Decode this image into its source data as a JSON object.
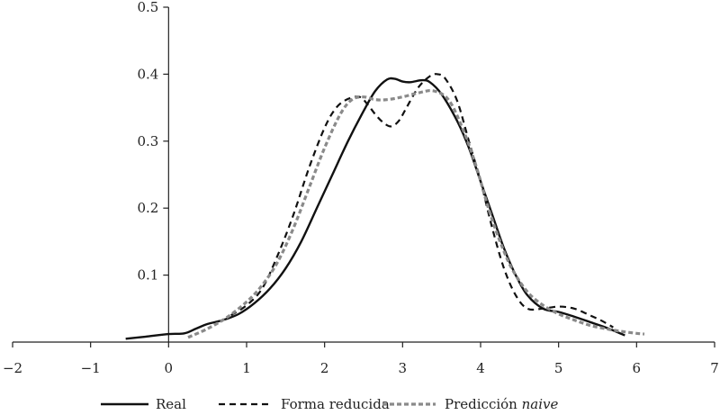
{
  "chart_data": {
    "type": "line",
    "title": "",
    "xlabel": "",
    "ylabel": "",
    "xlim": [
      -2,
      7
    ],
    "ylim": [
      0,
      0.5
    ],
    "x_ticks": [
      -2,
      -1,
      0,
      1,
      2,
      3,
      4,
      5,
      6,
      7
    ],
    "x_tick_labels": [
      "−2",
      "−1",
      "0",
      "1",
      "2",
      "3",
      "4",
      "5",
      "6",
      "7"
    ],
    "y_ticks": [
      0.1,
      0.2,
      0.3,
      0.4,
      0.5
    ],
    "y_tick_labels": [
      "0.1",
      "0.2",
      "0.3",
      "0.4",
      "0.5"
    ],
    "grid": false,
    "legend_position": "bottom",
    "series": [
      {
        "name": "Real",
        "style": "solid",
        "color": "#111111",
        "points": [
          [
            -0.55,
            0.005
          ],
          [
            -0.3,
            0.008
          ],
          [
            0.0,
            0.012
          ],
          [
            0.2,
            0.013
          ],
          [
            0.35,
            0.02
          ],
          [
            0.5,
            0.027
          ],
          [
            0.7,
            0.033
          ],
          [
            0.9,
            0.042
          ],
          [
            1.1,
            0.058
          ],
          [
            1.3,
            0.08
          ],
          [
            1.5,
            0.11
          ],
          [
            1.7,
            0.15
          ],
          [
            1.9,
            0.2
          ],
          [
            2.1,
            0.25
          ],
          [
            2.3,
            0.3
          ],
          [
            2.5,
            0.345
          ],
          [
            2.65,
            0.375
          ],
          [
            2.8,
            0.392
          ],
          [
            2.9,
            0.393
          ],
          [
            3.0,
            0.389
          ],
          [
            3.1,
            0.388
          ],
          [
            3.25,
            0.391
          ],
          [
            3.35,
            0.388
          ],
          [
            3.5,
            0.37
          ],
          [
            3.7,
            0.33
          ],
          [
            3.85,
            0.29
          ],
          [
            4.0,
            0.24
          ],
          [
            4.15,
            0.19
          ],
          [
            4.3,
            0.14
          ],
          [
            4.45,
            0.1
          ],
          [
            4.6,
            0.07
          ],
          [
            4.8,
            0.05
          ],
          [
            5.0,
            0.045
          ],
          [
            5.2,
            0.038
          ],
          [
            5.4,
            0.03
          ],
          [
            5.6,
            0.022
          ],
          [
            5.75,
            0.015
          ],
          [
            5.85,
            0.01
          ]
        ]
      },
      {
        "name": "Forma reducida",
        "style": "dashed",
        "color": "#111111",
        "points": [
          [
            0.8,
            0.04
          ],
          [
            1.0,
            0.055
          ],
          [
            1.2,
            0.08
          ],
          [
            1.4,
            0.13
          ],
          [
            1.6,
            0.19
          ],
          [
            1.8,
            0.26
          ],
          [
            2.0,
            0.32
          ],
          [
            2.15,
            0.35
          ],
          [
            2.3,
            0.363
          ],
          [
            2.45,
            0.366
          ],
          [
            2.55,
            0.355
          ],
          [
            2.65,
            0.34
          ],
          [
            2.75,
            0.328
          ],
          [
            2.85,
            0.322
          ],
          [
            2.95,
            0.33
          ],
          [
            3.05,
            0.35
          ],
          [
            3.2,
            0.38
          ],
          [
            3.35,
            0.397
          ],
          [
            3.45,
            0.4
          ],
          [
            3.55,
            0.393
          ],
          [
            3.7,
            0.36
          ],
          [
            3.85,
            0.3
          ],
          [
            4.0,
            0.24
          ],
          [
            4.15,
            0.17
          ],
          [
            4.3,
            0.11
          ],
          [
            4.45,
            0.07
          ],
          [
            4.6,
            0.05
          ],
          [
            4.8,
            0.05
          ],
          [
            5.0,
            0.053
          ],
          [
            5.2,
            0.05
          ],
          [
            5.4,
            0.04
          ],
          [
            5.55,
            0.032
          ],
          [
            5.7,
            0.022
          ]
        ]
      },
      {
        "name": "Predicción naive",
        "name_parts": [
          "Predicción ",
          "naive"
        ],
        "style": "dashed",
        "color": "#8a8a8a",
        "points": [
          [
            0.25,
            0.007
          ],
          [
            0.5,
            0.02
          ],
          [
            0.75,
            0.037
          ],
          [
            1.0,
            0.06
          ],
          [
            1.2,
            0.085
          ],
          [
            1.4,
            0.12
          ],
          [
            1.6,
            0.17
          ],
          [
            1.8,
            0.23
          ],
          [
            2.0,
            0.29
          ],
          [
            2.2,
            0.34
          ],
          [
            2.35,
            0.362
          ],
          [
            2.5,
            0.366
          ],
          [
            2.65,
            0.362
          ],
          [
            2.8,
            0.362
          ],
          [
            3.0,
            0.366
          ],
          [
            3.2,
            0.372
          ],
          [
            3.4,
            0.375
          ],
          [
            3.6,
            0.36
          ],
          [
            3.8,
            0.31
          ],
          [
            3.95,
            0.26
          ],
          [
            4.1,
            0.2
          ],
          [
            4.25,
            0.15
          ],
          [
            4.4,
            0.11
          ],
          [
            4.6,
            0.075
          ],
          [
            4.8,
            0.055
          ],
          [
            5.0,
            0.042
          ],
          [
            5.2,
            0.033
          ],
          [
            5.4,
            0.025
          ],
          [
            5.6,
            0.02
          ],
          [
            5.8,
            0.016
          ],
          [
            6.0,
            0.013
          ],
          [
            6.1,
            0.012
          ]
        ]
      }
    ]
  }
}
